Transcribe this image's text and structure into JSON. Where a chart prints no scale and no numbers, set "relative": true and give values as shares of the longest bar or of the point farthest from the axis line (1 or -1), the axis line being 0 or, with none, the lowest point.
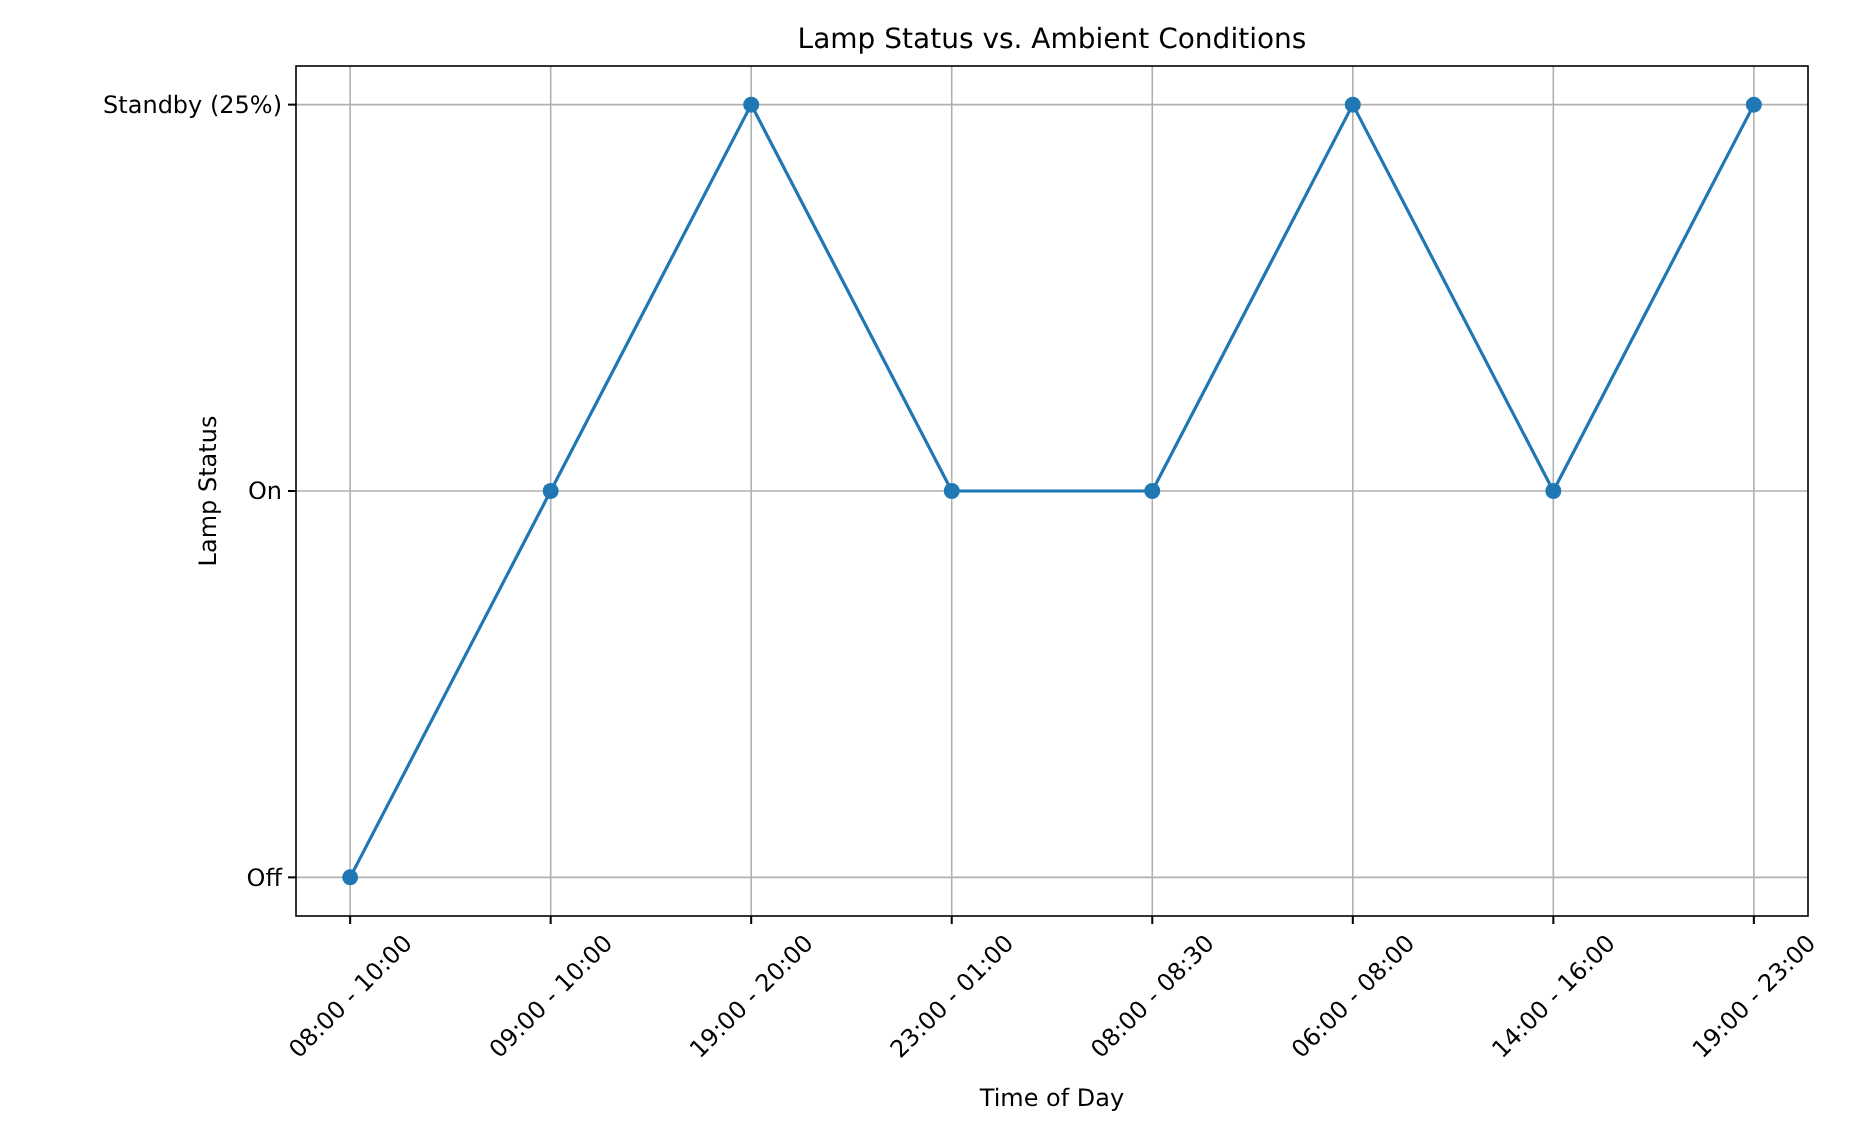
{
  "chart_data": {
    "type": "line",
    "title": "Lamp Status vs. Ambient Conditions",
    "xlabel": "Time of Day",
    "ylabel": "Lamp Status",
    "categories": [
      "08:00 - 10:00",
      "09:00 - 10:00",
      "19:00 - 20:00",
      "23:00 - 01:00",
      "08:00 - 08:30",
      "06:00 - 08:00",
      "14:00 - 16:00",
      "19:00 - 23:00"
    ],
    "series": [
      {
        "color": "#1f77b4",
        "values": [
          0,
          0.5,
          1,
          0.5,
          0.5,
          1,
          0.5,
          1
        ]
      }
    ],
    "relative": true,
    "annotations": [
      "Off",
      "On",
      "Standby (25%)"
    ],
    "grid": true,
    "marker": "circle",
    "line_style": "solid"
  }
}
